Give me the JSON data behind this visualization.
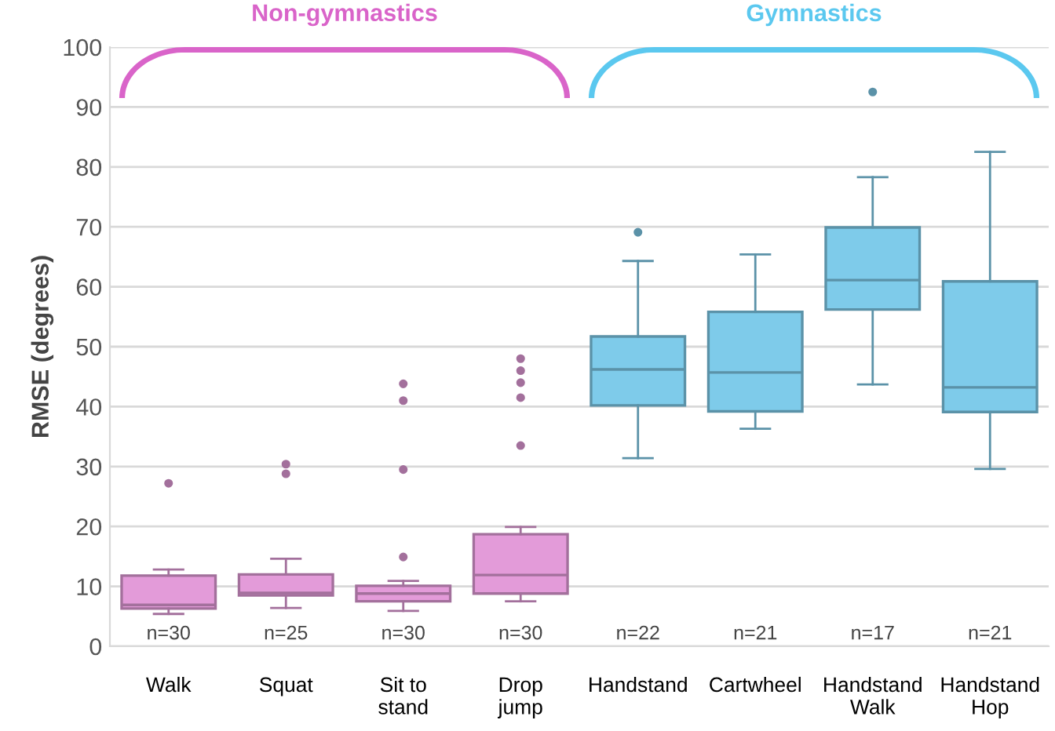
{
  "chart_data": {
    "type": "box",
    "ylabel": "RMSE (degrees)",
    "categories": [
      "Walk",
      "Squat",
      "Sit to\nstand",
      "Drop\njump",
      "Handstand",
      "Cartwheel",
      "Handstand\nWalk",
      "Handstand\nHop"
    ],
    "colors": [
      "#e39bd9",
      "#e39bd9",
      "#e39bd9",
      "#e39bd9",
      "#7ecbea",
      "#7ecbea",
      "#7ecbea",
      "#7ecbea"
    ],
    "boxes": [
      {
        "low": 5.4,
        "q1": 6.3,
        "median": 6.9,
        "q3": 11.8,
        "high": 12.8,
        "outliers": [
          27.2
        ]
      },
      {
        "low": 6.4,
        "q1": 8.5,
        "median": 8.9,
        "q3": 12,
        "high": 14.6,
        "outliers": [
          28.8,
          30.4
        ]
      },
      {
        "low": 5.9,
        "q1": 7.5,
        "median": 8.8,
        "q3": 10.1,
        "high": 10.9,
        "outliers": [
          14.9,
          29.5,
          41,
          43.8
        ]
      },
      {
        "low": 7.5,
        "q1": 8.8,
        "median": 11.9,
        "q3": 18.7,
        "high": 19.9,
        "outliers": [
          33.5,
          41.5,
          44,
          46,
          48
        ]
      },
      {
        "low": 31.4,
        "q1": 40.2,
        "median": 46.2,
        "q3": 51.7,
        "high": 64.3,
        "outliers": [
          69.1
        ]
      },
      {
        "low": 36.3,
        "q1": 39.2,
        "median": 45.7,
        "q3": 55.8,
        "high": 65.4
      },
      {
        "low": 43.7,
        "q1": 56.2,
        "median": 61.1,
        "q3": 69.9,
        "high": 78.3,
        "outliers": [
          92.5
        ]
      },
      {
        "low": 29.6,
        "q1": 39.1,
        "median": 43.2,
        "q3": 60.9,
        "high": 82.5
      }
    ],
    "ylim": [
      0,
      100
    ],
    "yticks": [
      0,
      10,
      20,
      30,
      40,
      50,
      60,
      70,
      80,
      90,
      100
    ],
    "grid": "y",
    "annotations": [
      "Non-gymnastics",
      "Gymnastics",
      "n=30",
      "n=25",
      "n=30",
      "n=30",
      "n=22",
      "n=21",
      "n=17",
      "n=21"
    ]
  }
}
